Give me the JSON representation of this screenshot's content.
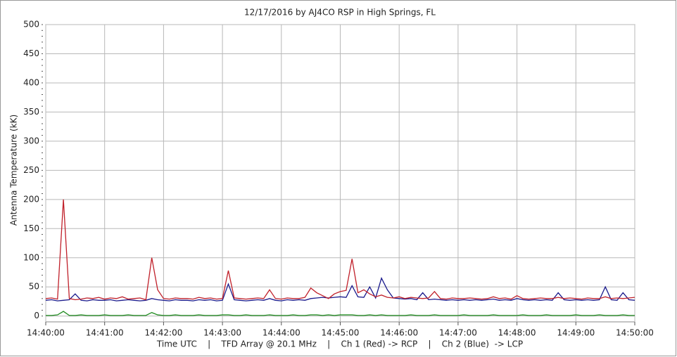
{
  "chart_data": {
    "type": "line",
    "title": "12/17/2016  by  AJ4CO RSP  in  High Springs, FL",
    "y_label": "Antenna Temperature (kK)",
    "x_label": "Time UTC    |    TFD Array @ 20.1 MHz    |    Ch 1 (Red) -> RCP    |    Ch 2 (Blue)  -> LCP",
    "x": [
      0,
      0.1,
      0.2,
      0.3,
      0.4,
      0.5,
      0.6,
      0.7,
      0.8,
      0.9,
      1,
      1.1,
      1.2,
      1.3,
      1.4,
      1.5,
      1.6,
      1.7,
      1.8,
      1.9,
      2,
      2.1,
      2.2,
      2.3,
      2.4,
      2.5,
      2.6,
      2.7,
      2.8,
      2.9,
      3,
      3.1,
      3.2,
      3.3,
      3.4,
      3.5,
      3.6,
      3.7,
      3.8,
      3.9,
      4,
      4.1,
      4.2,
      4.3,
      4.4,
      4.5,
      4.6,
      4.7,
      4.8,
      4.9,
      5,
      5.1,
      5.2,
      5.3,
      5.4,
      5.5,
      5.6,
      5.7,
      5.8,
      5.9,
      6,
      6.1,
      6.2,
      6.3,
      6.4,
      6.5,
      6.6,
      6.7,
      6.8,
      6.9,
      7,
      7.1,
      7.2,
      7.3,
      7.4,
      7.5,
      7.6,
      7.7,
      7.8,
      7.9,
      8,
      8.1,
      8.2,
      8.3,
      8.4,
      8.5,
      8.6,
      8.7,
      8.8,
      8.9,
      9,
      9.1,
      9.2,
      9.3,
      9.4,
      9.5,
      9.6,
      9.7,
      9.8,
      9.9,
      10
    ],
    "series": [
      {
        "color": "#c0202a",
        "values": [
          30,
          31,
          29,
          200,
          30,
          28,
          29,
          31,
          30,
          32,
          29,
          31,
          30,
          33,
          29,
          30,
          31,
          28,
          100,
          45,
          30,
          29,
          31,
          30,
          30,
          29,
          32,
          30,
          31,
          29,
          30,
          78,
          31,
          30,
          29,
          30,
          31,
          30,
          45,
          30,
          29,
          31,
          30,
          30,
          32,
          48,
          40,
          35,
          30,
          38,
          42,
          44,
          98,
          40,
          45,
          38,
          33,
          36,
          32,
          31,
          33,
          30,
          32,
          31,
          30,
          31,
          42,
          30,
          29,
          31,
          30,
          30,
          31,
          30,
          29,
          30,
          33,
          30,
          31,
          29,
          35,
          30,
          29,
          30,
          31,
          30,
          30,
          32,
          30,
          31,
          30,
          29,
          31,
          30,
          30,
          33,
          30,
          31,
          30,
          31,
          32
        ]
      },
      {
        "color": "#1a1a8c",
        "values": [
          27,
          28,
          26,
          27,
          28,
          38,
          27,
          26,
          28,
          27,
          27,
          28,
          26,
          27,
          28,
          27,
          26,
          27,
          30,
          28,
          27,
          26,
          28,
          27,
          27,
          26,
          28,
          27,
          28,
          26,
          27,
          55,
          28,
          27,
          26,
          27,
          28,
          27,
          30,
          27,
          26,
          28,
          27,
          28,
          27,
          30,
          31,
          32,
          31,
          32,
          33,
          32,
          52,
          33,
          32,
          50,
          31,
          65,
          45,
          31,
          30,
          29,
          30,
          28,
          40,
          28,
          29,
          28,
          27,
          28,
          27,
          28,
          27,
          28,
          27,
          28,
          29,
          27,
          28,
          27,
          30,
          28,
          27,
          28,
          27,
          28,
          27,
          40,
          28,
          27,
          28,
          27,
          28,
          27,
          28,
          50,
          28,
          27,
          40,
          28,
          27
        ]
      },
      {
        "color": "#1e8a1e",
        "values": [
          1,
          1,
          2,
          8,
          1,
          1,
          2,
          1,
          1,
          1,
          2,
          1,
          1,
          1,
          2,
          1,
          1,
          1,
          6,
          2,
          1,
          1,
          2,
          1,
          1,
          1,
          2,
          1,
          1,
          1,
          2,
          2,
          1,
          1,
          2,
          1,
          1,
          1,
          2,
          1,
          1,
          1,
          2,
          1,
          1,
          2,
          2,
          1,
          2,
          1,
          2,
          2,
          2,
          1,
          1,
          2,
          1,
          2,
          1,
          1,
          1,
          1,
          2,
          1,
          1,
          1,
          2,
          1,
          1,
          1,
          1,
          2,
          1,
          1,
          1,
          1,
          2,
          1,
          1,
          1,
          1,
          2,
          1,
          1,
          1,
          2,
          1,
          1,
          1,
          1,
          2,
          1,
          1,
          1,
          2,
          1,
          1,
          1,
          2,
          1,
          1
        ]
      }
    ],
    "xlim": [
      0,
      10
    ],
    "xticks": [
      {
        "value": 0,
        "label": "14:40:00"
      },
      {
        "value": 1,
        "label": "14:41:00"
      },
      {
        "value": 2,
        "label": "14:42:00"
      },
      {
        "value": 3,
        "label": "14:43:00"
      },
      {
        "value": 4,
        "label": "14:44:00"
      },
      {
        "value": 5,
        "label": "14:45:00"
      },
      {
        "value": 6,
        "label": "14:46:00"
      },
      {
        "value": 7,
        "label": "14:47:00"
      },
      {
        "value": 8,
        "label": "14:48:00"
      },
      {
        "value": 9,
        "label": "14:49:00"
      },
      {
        "value": 10,
        "label": "14:50:00"
      }
    ],
    "ylim": [
      -10,
      500
    ],
    "yticks": [
      0,
      50,
      100,
      150,
      200,
      250,
      300,
      350,
      400,
      450,
      500
    ],
    "grid": true
  }
}
